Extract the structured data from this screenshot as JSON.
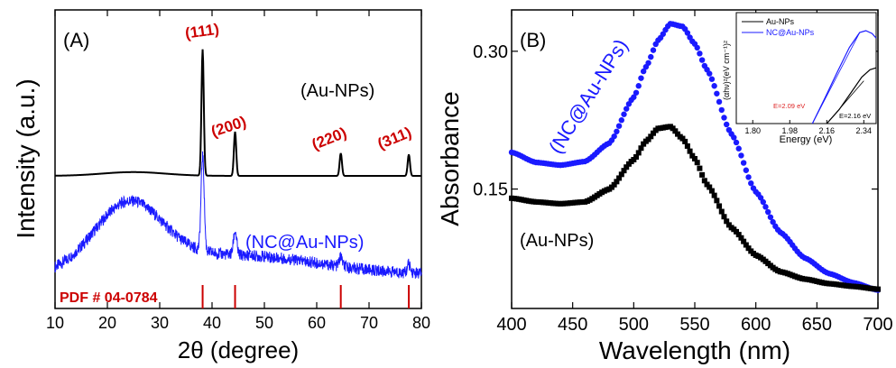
{
  "colors": {
    "black": "#000000",
    "blue": "#1a1aff",
    "red": "#cc0000",
    "inset_red": "#dd2222"
  },
  "chart_data": [
    {
      "panel_label": "(A)",
      "type": "line",
      "xlabel": "2θ (degree)",
      "ylabel": "Intensity (a.u.)",
      "xlim": [
        10,
        80
      ],
      "xticks": [
        "10",
        "20",
        "30",
        "40",
        "50",
        "60",
        "70",
        "80"
      ],
      "y_ticks_shown": false,
      "series": [
        {
          "name": "(Au-NPs)",
          "color": "#000000",
          "peaks": [
            {
              "x": 38.2,
              "rel_height": 1.0
            },
            {
              "x": 44.4,
              "rel_height": 0.35
            },
            {
              "x": 64.6,
              "rel_height": 0.18
            },
            {
              "x": 77.6,
              "rel_height": 0.17
            }
          ]
        },
        {
          "name": "(NC@Au-NPs)",
          "color": "#1a1aff",
          "broad_hump_center": 24,
          "peaks": [
            {
              "x": 38.2,
              "rel_height": 1.0
            },
            {
              "x": 44.4,
              "rel_height": 0.25
            },
            {
              "x": 64.6,
              "rel_height": 0.1
            },
            {
              "x": 77.6,
              "rel_height": 0.09
            }
          ]
        }
      ],
      "peak_labels": [
        "(111)",
        "(200)",
        "(220)",
        "(311)"
      ],
      "reference": {
        "label": "PDF # 04-0784",
        "lines": [
          38.2,
          44.4,
          64.6,
          77.6
        ],
        "color": "#cc0000"
      }
    },
    {
      "panel_label": "(B)",
      "type": "scatter",
      "xlabel": "Wavelength (nm)",
      "ylabel": "Absorbance",
      "xlim": [
        400,
        700
      ],
      "ylim": [
        0.02,
        0.345
      ],
      "xticks": [
        "400",
        "450",
        "500",
        "550",
        "600",
        "650",
        "700"
      ],
      "yticks": [
        "0.15",
        "0.30"
      ],
      "series": [
        {
          "name": "(NC@Au-NPs)",
          "color": "#1a1aff",
          "marker": "circle",
          "x": [
            400,
            420,
            440,
            460,
            480,
            500,
            510,
            520,
            530,
            540,
            550,
            560,
            580,
            600,
            620,
            640,
            660,
            680,
            700
          ],
          "y": [
            0.19,
            0.179,
            0.176,
            0.18,
            0.2,
            0.25,
            0.283,
            0.312,
            0.33,
            0.327,
            0.308,
            0.28,
            0.21,
            0.147,
            0.103,
            0.075,
            0.058,
            0.048,
            0.04
          ]
        },
        {
          "name": "(Au-NPs)",
          "color": "#000000",
          "marker": "square",
          "x": [
            400,
            420,
            440,
            460,
            480,
            500,
            510,
            520,
            530,
            540,
            550,
            560,
            580,
            600,
            620,
            640,
            660,
            680,
            700
          ],
          "y": [
            0.14,
            0.136,
            0.134,
            0.136,
            0.15,
            0.182,
            0.202,
            0.216,
            0.218,
            0.205,
            0.183,
            0.155,
            0.108,
            0.078,
            0.06,
            0.052,
            0.047,
            0.044,
            0.041
          ]
        }
      ],
      "inset": {
        "type": "line",
        "xlabel": "Energy (eV)",
        "ylabel": "(αhν)²(eV cm⁻¹)²",
        "xlim": [
          1.72,
          2.4
        ],
        "xticks": [
          "1.80",
          "1.98",
          "2.16",
          "2.34"
        ],
        "legend": [
          "Au-NPs",
          "NC@Au-NPs"
        ],
        "annotations": [
          "E=2.09 eV",
          "E=2.16 eV"
        ],
        "series": [
          {
            "name": "Au-NPs",
            "color": "#000000",
            "x": [
              2.16,
              2.22,
              2.28,
              2.33,
              2.37,
              2.4
            ],
            "y": [
              0.0,
              0.15,
              0.34,
              0.5,
              0.58,
              0.6
            ]
          },
          {
            "name": "NC@Au-NPs",
            "color": "#1a1aff",
            "x": [
              2.09,
              2.15,
              2.21,
              2.27,
              2.32,
              2.35,
              2.38,
              2.4
            ],
            "y": [
              0.0,
              0.27,
              0.55,
              0.82,
              0.98,
              1.0,
              0.97,
              0.92
            ]
          },
          {
            "name": "Au-NPs tangent",
            "color": "#000000",
            "x": [
              2.16,
              2.34
            ],
            "y": [
              0.0,
              0.46
            ]
          },
          {
            "name": "NC@Au-NPs tangent",
            "color": "#1a1aff",
            "x": [
              2.09,
              2.32
            ],
            "y": [
              0.0,
              0.98
            ]
          }
        ]
      }
    }
  ]
}
